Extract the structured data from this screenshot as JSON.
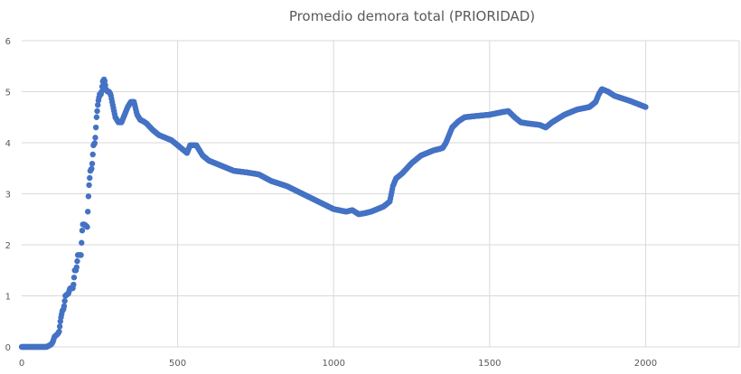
{
  "chart_data": {
    "type": "scatter",
    "title": "Promedio demora total (PRIORIDAD)",
    "xlabel": "",
    "ylabel": "",
    "xlim": [
      0,
      2300
    ],
    "ylim": [
      0,
      6
    ],
    "x_ticks": [
      0,
      500,
      1000,
      1500,
      2000
    ],
    "y_ticks": [
      0,
      1,
      2,
      3,
      4,
      5,
      6
    ],
    "vertical_grid": true,
    "horizontal_grid": true,
    "marker_color": "#4472c4",
    "series": [
      {
        "keypoints_x": [
          0,
          20,
          25,
          40,
          60,
          80,
          95,
          100,
          105,
          115,
          120,
          125,
          130,
          135,
          140,
          150,
          155,
          165,
          170,
          175,
          180,
          185,
          190,
          195,
          200,
          205,
          210,
          215,
          220,
          225,
          230,
          235,
          240,
          245,
          250,
          255,
          260,
          265,
          270,
          275,
          280,
          285,
          290,
          295,
          300,
          310,
          320,
          330,
          340,
          350,
          360,
          370,
          380,
          390,
          400,
          420,
          440,
          460,
          480,
          500,
          520,
          530,
          540,
          560,
          580,
          600,
          620,
          640,
          680,
          720,
          760,
          800,
          850,
          900,
          950,
          1000,
          1040,
          1060,
          1080,
          1100,
          1120,
          1140,
          1160,
          1180,
          1185,
          1190,
          1200,
          1220,
          1250,
          1280,
          1300,
          1320,
          1340,
          1350,
          1360,
          1380,
          1400,
          1420,
          1450,
          1500,
          1540,
          1560,
          1580,
          1600,
          1620,
          1660,
          1680,
          1700,
          1740,
          1780,
          1820,
          1840,
          1850,
          1860,
          1880,
          1900,
          1950,
          2000
        ],
        "keypoints_y": [
          0.0,
          0.0,
          0.0,
          0.0,
          0.0,
          0.0,
          0.05,
          0.1,
          0.2,
          0.25,
          0.3,
          0.55,
          0.7,
          0.75,
          1.0,
          1.05,
          1.15,
          1.15,
          1.5,
          1.5,
          1.8,
          1.8,
          1.8,
          2.4,
          2.4,
          2.38,
          2.35,
          3.1,
          3.45,
          3.5,
          3.95,
          4.0,
          4.5,
          4.8,
          4.95,
          4.95,
          5.2,
          5.25,
          5.05,
          5.0,
          5.0,
          4.95,
          4.8,
          4.65,
          4.5,
          4.4,
          4.4,
          4.55,
          4.7,
          4.8,
          4.8,
          4.55,
          4.45,
          4.42,
          4.38,
          4.25,
          4.15,
          4.1,
          4.05,
          3.95,
          3.85,
          3.8,
          3.95,
          3.95,
          3.75,
          3.65,
          3.6,
          3.55,
          3.45,
          3.42,
          3.38,
          3.25,
          3.15,
          3.0,
          2.85,
          2.7,
          2.65,
          2.68,
          2.6,
          2.62,
          2.65,
          2.7,
          2.75,
          2.85,
          3.0,
          3.15,
          3.3,
          3.4,
          3.6,
          3.75,
          3.8,
          3.85,
          3.88,
          3.9,
          4.0,
          4.3,
          4.42,
          4.5,
          4.52,
          4.55,
          4.6,
          4.62,
          4.5,
          4.4,
          4.38,
          4.35,
          4.3,
          4.4,
          4.55,
          4.65,
          4.7,
          4.8,
          4.95,
          5.05,
          5.0,
          4.92,
          4.82,
          4.7
        ],
        "point_count": 2000
      }
    ]
  }
}
